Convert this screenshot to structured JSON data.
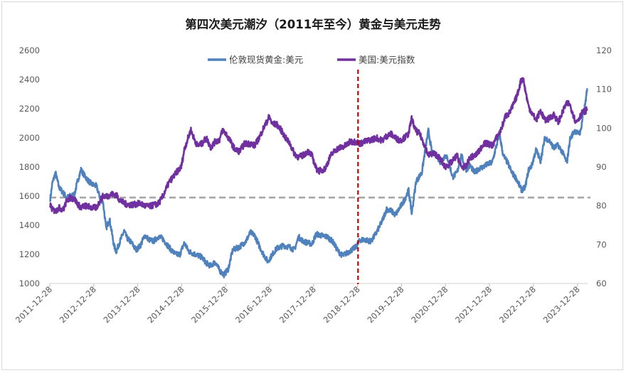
{
  "chart_data": {
    "type": "line",
    "title": "第四次美元潮汐（2011年至今）黄金与美元走势",
    "x_tick_labels": [
      "2011-12-28",
      "2012-12-28",
      "2013-12-28",
      "2014-12-28",
      "2015-12-28",
      "2016-12-28",
      "2017-12-28",
      "2018-12-28",
      "2019-12-28",
      "2020-12-28",
      "2021-12-28",
      "2022-12-28",
      "2023-12-28"
    ],
    "x_range": [
      2011.99,
      2024.22
    ],
    "y_left": {
      "range": [
        1000,
        2600
      ],
      "ticks": [
        "1000",
        "1200",
        "1400",
        "1600",
        "1800",
        "2000",
        "2200",
        "2400",
        "2600"
      ]
    },
    "y_right": {
      "range": [
        60,
        120
      ],
      "ticks": [
        "60",
        "70",
        "80",
        "90",
        "100",
        "110",
        "120"
      ]
    },
    "legend_position": "top-center",
    "grid": false,
    "series": [
      {
        "name": "伦敦现货黄金:美元",
        "axis": "left",
        "color": "#4f81bd",
        "points": [
          [
            2012.0,
            1580
          ],
          [
            2012.05,
            1690
          ],
          [
            2012.12,
            1760
          ],
          [
            2012.2,
            1660
          ],
          [
            2012.3,
            1620
          ],
          [
            2012.38,
            1590
          ],
          [
            2012.45,
            1600
          ],
          [
            2012.55,
            1610
          ],
          [
            2012.62,
            1700
          ],
          [
            2012.7,
            1780
          ],
          [
            2012.78,
            1740
          ],
          [
            2012.88,
            1700
          ],
          [
            2012.95,
            1680
          ],
          [
            2013.05,
            1670
          ],
          [
            2013.12,
            1600
          ],
          [
            2013.2,
            1560
          ],
          [
            2013.27,
            1380
          ],
          [
            2013.35,
            1440
          ],
          [
            2013.45,
            1260
          ],
          [
            2013.5,
            1220
          ],
          [
            2013.6,
            1300
          ],
          [
            2013.68,
            1360
          ],
          [
            2013.75,
            1310
          ],
          [
            2013.85,
            1280
          ],
          [
            2013.95,
            1230
          ],
          [
            2014.05,
            1260
          ],
          [
            2014.15,
            1330
          ],
          [
            2014.25,
            1300
          ],
          [
            2014.35,
            1290
          ],
          [
            2014.45,
            1320
          ],
          [
            2014.55,
            1310
          ],
          [
            2014.65,
            1270
          ],
          [
            2014.75,
            1230
          ],
          [
            2014.85,
            1200
          ],
          [
            2014.95,
            1200
          ],
          [
            2015.05,
            1280
          ],
          [
            2015.15,
            1220
          ],
          [
            2015.3,
            1200
          ],
          [
            2015.45,
            1180
          ],
          [
            2015.55,
            1140
          ],
          [
            2015.65,
            1120
          ],
          [
            2015.75,
            1150
          ],
          [
            2015.85,
            1090
          ],
          [
            2015.95,
            1060
          ],
          [
            2016.05,
            1100
          ],
          [
            2016.15,
            1230
          ],
          [
            2016.3,
            1250
          ],
          [
            2016.45,
            1290
          ],
          [
            2016.55,
            1350
          ],
          [
            2016.65,
            1330
          ],
          [
            2016.75,
            1260
          ],
          [
            2016.85,
            1200
          ],
          [
            2016.95,
            1150
          ],
          [
            2017.05,
            1200
          ],
          [
            2017.15,
            1240
          ],
          [
            2017.3,
            1260
          ],
          [
            2017.45,
            1250
          ],
          [
            2017.55,
            1230
          ],
          [
            2017.65,
            1320
          ],
          [
            2017.75,
            1290
          ],
          [
            2017.85,
            1280
          ],
          [
            2017.95,
            1270
          ],
          [
            2018.05,
            1340
          ],
          [
            2018.15,
            1330
          ],
          [
            2018.3,
            1320
          ],
          [
            2018.42,
            1290
          ],
          [
            2018.55,
            1220
          ],
          [
            2018.65,
            1190
          ],
          [
            2018.75,
            1210
          ],
          [
            2018.85,
            1230
          ],
          [
            2018.95,
            1250
          ],
          [
            2019.05,
            1300
          ],
          [
            2019.15,
            1300
          ],
          [
            2019.3,
            1290
          ],
          [
            2019.42,
            1350
          ],
          [
            2019.55,
            1430
          ],
          [
            2019.65,
            1510
          ],
          [
            2019.75,
            1500
          ],
          [
            2019.85,
            1470
          ],
          [
            2019.95,
            1520
          ],
          [
            2020.05,
            1570
          ],
          [
            2020.15,
            1640
          ],
          [
            2020.22,
            1480
          ],
          [
            2020.32,
            1700
          ],
          [
            2020.45,
            1760
          ],
          [
            2020.55,
            1960
          ],
          [
            2020.6,
            2050
          ],
          [
            2020.68,
            1900
          ],
          [
            2020.78,
            1880
          ],
          [
            2020.88,
            1830
          ],
          [
            2020.98,
            1880
          ],
          [
            2021.05,
            1850
          ],
          [
            2021.15,
            1730
          ],
          [
            2021.25,
            1760
          ],
          [
            2021.35,
            1880
          ],
          [
            2021.45,
            1780
          ],
          [
            2021.55,
            1810
          ],
          [
            2021.65,
            1760
          ],
          [
            2021.75,
            1790
          ],
          [
            2021.85,
            1800
          ],
          [
            2021.95,
            1820
          ],
          [
            2022.05,
            1830
          ],
          [
            2022.15,
            1950
          ],
          [
            2022.22,
            2020
          ],
          [
            2022.3,
            1880
          ],
          [
            2022.4,
            1830
          ],
          [
            2022.5,
            1760
          ],
          [
            2022.6,
            1720
          ],
          [
            2022.72,
            1640
          ],
          [
            2022.8,
            1660
          ],
          [
            2022.88,
            1780
          ],
          [
            2022.95,
            1810
          ],
          [
            2023.05,
            1920
          ],
          [
            2023.15,
            1840
          ],
          [
            2023.25,
            2000
          ],
          [
            2023.35,
            1980
          ],
          [
            2023.45,
            1930
          ],
          [
            2023.55,
            1950
          ],
          [
            2023.65,
            1900
          ],
          [
            2023.75,
            1830
          ],
          [
            2023.82,
            1990
          ],
          [
            2023.92,
            2050
          ],
          [
            2024.0,
            2030
          ],
          [
            2024.06,
            2040
          ],
          [
            2024.12,
            2170
          ],
          [
            2024.18,
            2250
          ],
          [
            2024.21,
            2340
          ]
        ]
      },
      {
        "name": "美国:美元指数",
        "axis": "right",
        "color": "#7030a0",
        "points": [
          [
            2012.0,
            80.2
          ],
          [
            2012.05,
            79.0
          ],
          [
            2012.12,
            78.6
          ],
          [
            2012.2,
            79.5
          ],
          [
            2012.3,
            79.0
          ],
          [
            2012.38,
            81.5
          ],
          [
            2012.45,
            82.0
          ],
          [
            2012.55,
            81.8
          ],
          [
            2012.62,
            80.5
          ],
          [
            2012.7,
            79.5
          ],
          [
            2012.78,
            80.0
          ],
          [
            2012.88,
            79.8
          ],
          [
            2012.95,
            79.5
          ],
          [
            2013.05,
            79.5
          ],
          [
            2013.12,
            81.0
          ],
          [
            2013.2,
            82.5
          ],
          [
            2013.3,
            82.5
          ],
          [
            2013.4,
            83.0
          ],
          [
            2013.5,
            82.8
          ],
          [
            2013.58,
            81.5
          ],
          [
            2013.7,
            80.5
          ],
          [
            2013.8,
            80.3
          ],
          [
            2013.9,
            80.3
          ],
          [
            2013.98,
            80.5
          ],
          [
            2014.05,
            80.6
          ],
          [
            2014.15,
            80.0
          ],
          [
            2014.25,
            79.8
          ],
          [
            2014.35,
            80.2
          ],
          [
            2014.45,
            80.5
          ],
          [
            2014.52,
            81.5
          ],
          [
            2014.6,
            83.5
          ],
          [
            2014.7,
            86.0
          ],
          [
            2014.8,
            87.5
          ],
          [
            2014.9,
            89.0
          ],
          [
            2014.98,
            90.0
          ],
          [
            2015.05,
            94.5
          ],
          [
            2015.12,
            97.0
          ],
          [
            2015.2,
            99.5
          ],
          [
            2015.28,
            97.0
          ],
          [
            2015.35,
            95.5
          ],
          [
            2015.45,
            96.0
          ],
          [
            2015.55,
            97.5
          ],
          [
            2015.65,
            95.0
          ],
          [
            2015.75,
            96.5
          ],
          [
            2015.85,
            97.0
          ],
          [
            2015.92,
            99.5
          ],
          [
            2016.0,
            98.5
          ],
          [
            2016.1,
            96.5
          ],
          [
            2016.2,
            94.5
          ],
          [
            2016.3,
            94.0
          ],
          [
            2016.42,
            96.0
          ],
          [
            2016.55,
            96.0
          ],
          [
            2016.65,
            95.5
          ],
          [
            2016.75,
            97.5
          ],
          [
            2016.85,
            100.0
          ],
          [
            2016.92,
            101.5
          ],
          [
            2016.98,
            103.0
          ],
          [
            2017.05,
            101.0
          ],
          [
            2017.15,
            101.0
          ],
          [
            2017.25,
            99.5
          ],
          [
            2017.35,
            97.5
          ],
          [
            2017.45,
            96.0
          ],
          [
            2017.55,
            93.5
          ],
          [
            2017.65,
            92.5
          ],
          [
            2017.75,
            93.0
          ],
          [
            2017.85,
            94.0
          ],
          [
            2017.95,
            93.0
          ],
          [
            2018.05,
            89.5
          ],
          [
            2018.12,
            89.0
          ],
          [
            2018.25,
            89.5
          ],
          [
            2018.38,
            93.0
          ],
          [
            2018.5,
            94.5
          ],
          [
            2018.6,
            95.0
          ],
          [
            2018.72,
            95.5
          ],
          [
            2018.82,
            96.5
          ],
          [
            2018.95,
            96.5
          ],
          [
            2019.05,
            96.0
          ],
          [
            2019.15,
            96.5
          ],
          [
            2019.3,
            97.0
          ],
          [
            2019.42,
            97.5
          ],
          [
            2019.55,
            96.8
          ],
          [
            2019.65,
            98.0
          ],
          [
            2019.75,
            98.5
          ],
          [
            2019.85,
            97.5
          ],
          [
            2019.95,
            96.8
          ],
          [
            2020.05,
            97.5
          ],
          [
            2020.15,
            98.5
          ],
          [
            2020.22,
            102.5
          ],
          [
            2020.3,
            99.5
          ],
          [
            2020.4,
            98.5
          ],
          [
            2020.5,
            96.0
          ],
          [
            2020.6,
            93.0
          ],
          [
            2020.7,
            93.5
          ],
          [
            2020.8,
            93.0
          ],
          [
            2020.9,
            91.5
          ],
          [
            2020.98,
            90.0
          ],
          [
            2021.05,
            90.5
          ],
          [
            2021.15,
            91.5
          ],
          [
            2021.25,
            93.0
          ],
          [
            2021.35,
            90.0
          ],
          [
            2021.45,
            90.0
          ],
          [
            2021.55,
            92.5
          ],
          [
            2021.65,
            92.8
          ],
          [
            2021.75,
            94.0
          ],
          [
            2021.85,
            96.0
          ],
          [
            2021.95,
            96.0
          ],
          [
            2022.05,
            95.5
          ],
          [
            2022.15,
            97.5
          ],
          [
            2022.25,
            99.5
          ],
          [
            2022.35,
            103.0
          ],
          [
            2022.45,
            104.0
          ],
          [
            2022.55,
            106.5
          ],
          [
            2022.62,
            108.5
          ],
          [
            2022.7,
            112.0
          ],
          [
            2022.75,
            113.0
          ],
          [
            2022.8,
            110.0
          ],
          [
            2022.88,
            105.5
          ],
          [
            2022.95,
            104.0
          ],
          [
            2023.05,
            102.0
          ],
          [
            2023.15,
            104.5
          ],
          [
            2023.25,
            102.0
          ],
          [
            2023.35,
            102.5
          ],
          [
            2023.45,
            103.5
          ],
          [
            2023.55,
            101.5
          ],
          [
            2023.65,
            104.0
          ],
          [
            2023.72,
            106.0
          ],
          [
            2023.8,
            106.5
          ],
          [
            2023.88,
            104.0
          ],
          [
            2023.95,
            101.5
          ],
          [
            2024.02,
            102.5
          ],
          [
            2024.1,
            104.0
          ],
          [
            2024.18,
            104.5
          ],
          [
            2024.21,
            105.0
          ]
        ]
      }
    ],
    "reference_line": {
      "axis": "left",
      "value": 1590,
      "style": "dashed",
      "color": "#a6a6a6"
    },
    "vertical_marker": {
      "x": 2019.0,
      "style": "dashed",
      "color": "#c00000"
    }
  }
}
